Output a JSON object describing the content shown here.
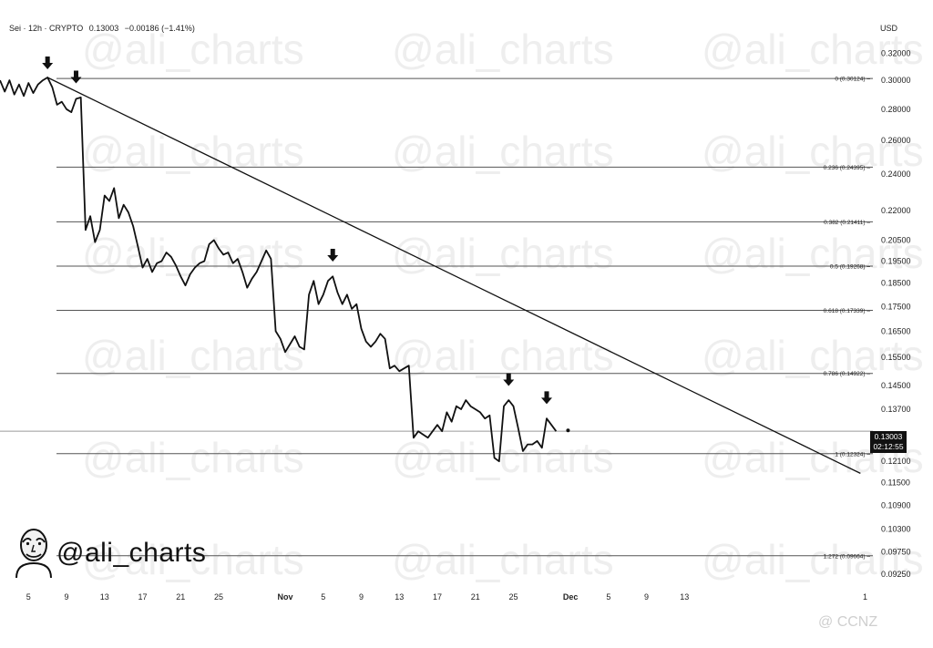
{
  "header": {
    "symbol": "Sei · 12h · CRYPTO",
    "price": "0.13003",
    "change": "−0.00186 (−1.41%)",
    "currency": "USD"
  },
  "price_label": {
    "price": "0.13003",
    "countdown": "02:12:55"
  },
  "watermark": {
    "handle": "@ali_charts",
    "repeat_text": "@ali_charts"
  },
  "source": {
    "mark": "@ CCNZ"
  },
  "colors": {
    "line": "#111111",
    "fib": "#555555",
    "axis_text": "#222222",
    "watermark": "#eeeeee"
  },
  "chart_data": {
    "type": "line",
    "title": "",
    "xlabel": "",
    "ylabel": "",
    "y_scale": "log",
    "ylim": [
      0.0905,
      0.333
    ],
    "y_ticks": [
      "0.32000",
      "0.30000",
      "0.28000",
      "0.26000",
      "0.24000",
      "0.22000",
      "0.20500",
      "0.19500",
      "0.18500",
      "0.17500",
      "0.16500",
      "0.15500",
      "0.14500",
      "0.13700",
      "0.12100",
      "0.11500",
      "0.10900",
      "0.10300",
      "0.09750",
      "0.09250"
    ],
    "x_ticks": [
      {
        "date": "2024-10-05",
        "label": "5"
      },
      {
        "date": "2024-10-09",
        "label": "9"
      },
      {
        "date": "2024-10-13",
        "label": "13"
      },
      {
        "date": "2024-10-17",
        "label": "17"
      },
      {
        "date": "2024-10-21",
        "label": "21"
      },
      {
        "date": "2024-10-25",
        "label": "25"
      },
      {
        "date": "2024-11-01",
        "label": "Nov"
      },
      {
        "date": "2024-11-05",
        "label": "5"
      },
      {
        "date": "2024-11-09",
        "label": "9"
      },
      {
        "date": "2024-11-13",
        "label": "13"
      },
      {
        "date": "2024-11-17",
        "label": "17"
      },
      {
        "date": "2024-11-21",
        "label": "21"
      },
      {
        "date": "2024-11-25",
        "label": "25"
      },
      {
        "date": "2024-12-01",
        "label": "Dec"
      },
      {
        "date": "2024-12-05",
        "label": "5"
      },
      {
        "date": "2024-12-09",
        "label": "9"
      },
      {
        "date": "2024-12-13",
        "label": "13"
      },
      {
        "date": "2025-01-01",
        "label": "1"
      }
    ],
    "series": [
      {
        "values": [
          [
            "2024-10-02 00:00",
            0.3
          ],
          [
            "2024-10-02 12:00",
            0.292
          ],
          [
            "2024-10-03 00:00",
            0.3
          ],
          [
            "2024-10-03 12:00",
            0.29
          ],
          [
            "2024-10-04 00:00",
            0.297
          ],
          [
            "2024-10-04 12:00",
            0.289
          ],
          [
            "2024-10-05 00:00",
            0.298
          ],
          [
            "2024-10-05 12:00",
            0.291
          ],
          [
            "2024-10-06 00:00",
            0.297
          ],
          [
            "2024-10-06 12:00",
            0.3
          ],
          [
            "2024-10-07 00:00",
            0.302
          ],
          [
            "2024-10-07 12:00",
            0.295
          ],
          [
            "2024-10-08 00:00",
            0.283
          ],
          [
            "2024-10-08 12:00",
            0.285
          ],
          [
            "2024-10-09 00:00",
            0.28
          ],
          [
            "2024-10-09 12:00",
            0.278
          ],
          [
            "2024-10-10 00:00",
            0.287
          ],
          [
            "2024-10-10 12:00",
            0.288
          ],
          [
            "2024-10-11 00:00",
            0.21
          ],
          [
            "2024-10-11 12:00",
            0.217
          ],
          [
            "2024-10-12 00:00",
            0.204
          ],
          [
            "2024-10-12 12:00",
            0.21
          ],
          [
            "2024-10-13 00:00",
            0.228
          ],
          [
            "2024-10-13 12:00",
            0.225
          ],
          [
            "2024-10-14 00:00",
            0.232
          ],
          [
            "2024-10-14 12:00",
            0.216
          ],
          [
            "2024-10-15 00:00",
            0.223
          ],
          [
            "2024-10-15 12:00",
            0.219
          ],
          [
            "2024-10-16 00:00",
            0.212
          ],
          [
            "2024-10-16 12:00",
            0.202
          ],
          [
            "2024-10-17 00:00",
            0.192
          ],
          [
            "2024-10-17 12:00",
            0.196
          ],
          [
            "2024-10-18 00:00",
            0.19
          ],
          [
            "2024-10-18 12:00",
            0.194
          ],
          [
            "2024-10-19 00:00",
            0.195
          ],
          [
            "2024-10-19 12:00",
            0.199
          ],
          [
            "2024-10-20 00:00",
            0.197
          ],
          [
            "2024-10-20 12:00",
            0.193
          ],
          [
            "2024-10-21 00:00",
            0.188
          ],
          [
            "2024-10-21 12:00",
            0.184
          ],
          [
            "2024-10-22 00:00",
            0.189
          ],
          [
            "2024-10-22 12:00",
            0.192
          ],
          [
            "2024-10-23 00:00",
            0.194
          ],
          [
            "2024-10-23 12:00",
            0.195
          ],
          [
            "2024-10-24 00:00",
            0.203
          ],
          [
            "2024-10-24 12:00",
            0.205
          ],
          [
            "2024-10-25 00:00",
            0.201
          ],
          [
            "2024-10-25 12:00",
            0.198
          ],
          [
            "2024-10-26 00:00",
            0.199
          ],
          [
            "2024-10-26 12:00",
            0.194
          ],
          [
            "2024-10-27 00:00",
            0.196
          ],
          [
            "2024-10-27 12:00",
            0.19
          ],
          [
            "2024-10-28 00:00",
            0.183
          ],
          [
            "2024-10-28 12:00",
            0.187
          ],
          [
            "2024-10-29 00:00",
            0.19
          ],
          [
            "2024-10-29 12:00",
            0.195
          ],
          [
            "2024-10-30 00:00",
            0.2
          ],
          [
            "2024-10-30 12:00",
            0.196
          ],
          [
            "2024-10-31 00:00",
            0.165
          ],
          [
            "2024-10-31 12:00",
            0.162
          ],
          [
            "2024-11-01 00:00",
            0.157
          ],
          [
            "2024-11-01 12:00",
            0.16
          ],
          [
            "2024-11-02 00:00",
            0.163
          ],
          [
            "2024-11-02 12:00",
            0.159
          ],
          [
            "2024-11-03 00:00",
            0.158
          ],
          [
            "2024-11-03 12:00",
            0.18
          ],
          [
            "2024-11-04 00:00",
            0.186
          ],
          [
            "2024-11-04 12:00",
            0.176
          ],
          [
            "2024-11-05 00:00",
            0.18
          ],
          [
            "2024-11-05 12:00",
            0.186
          ],
          [
            "2024-11-06 00:00",
            0.188
          ],
          [
            "2024-11-06 12:00",
            0.181
          ],
          [
            "2024-11-07 00:00",
            0.176
          ],
          [
            "2024-11-07 12:00",
            0.18
          ],
          [
            "2024-11-08 00:00",
            0.174
          ],
          [
            "2024-11-08 12:00",
            0.176
          ],
          [
            "2024-11-09 00:00",
            0.166
          ],
          [
            "2024-11-09 12:00",
            0.161
          ],
          [
            "2024-11-10 00:00",
            0.159
          ],
          [
            "2024-11-10 12:00",
            0.161
          ],
          [
            "2024-11-11 00:00",
            0.164
          ],
          [
            "2024-11-11 12:00",
            0.162
          ],
          [
            "2024-11-12 00:00",
            0.151
          ],
          [
            "2024-11-12 12:00",
            0.152
          ],
          [
            "2024-11-13 00:00",
            0.15
          ],
          [
            "2024-11-13 12:00",
            0.151
          ],
          [
            "2024-11-14 00:00",
            0.152
          ],
          [
            "2024-11-14 12:00",
            0.128
          ],
          [
            "2024-11-15 00:00",
            0.13
          ],
          [
            "2024-11-15 12:00",
            0.129
          ],
          [
            "2024-11-16 00:00",
            0.128
          ],
          [
            "2024-11-16 12:00",
            0.13
          ],
          [
            "2024-11-17 00:00",
            0.132
          ],
          [
            "2024-11-17 12:00",
            0.13
          ],
          [
            "2024-11-18 00:00",
            0.136
          ],
          [
            "2024-11-18 12:00",
            0.133
          ],
          [
            "2024-11-19 00:00",
            0.138
          ],
          [
            "2024-11-19 12:00",
            0.137
          ],
          [
            "2024-11-20 00:00",
            0.14
          ],
          [
            "2024-11-20 12:00",
            0.138
          ],
          [
            "2024-11-21 00:00",
            0.137
          ],
          [
            "2024-11-21 12:00",
            0.136
          ],
          [
            "2024-11-22 00:00",
            0.134
          ],
          [
            "2024-11-22 12:00",
            0.135
          ],
          [
            "2024-11-23 00:00",
            0.122
          ],
          [
            "2024-11-23 12:00",
            0.121
          ],
          [
            "2024-11-24 00:00",
            0.138
          ],
          [
            "2024-11-24 12:00",
            0.14
          ],
          [
            "2024-11-25 00:00",
            0.138
          ],
          [
            "2024-11-25 12:00",
            0.131
          ],
          [
            "2024-11-26 00:00",
            0.124
          ],
          [
            "2024-11-26 12:00",
            0.126
          ],
          [
            "2024-11-27 00:00",
            0.126
          ],
          [
            "2024-11-27 12:00",
            0.127
          ],
          [
            "2024-11-28 00:00",
            0.125
          ],
          [
            "2024-11-28 12:00",
            0.134
          ],
          [
            "2024-11-29 00:00",
            0.132
          ],
          [
            "2024-11-29 12:00",
            0.13
          ]
        ]
      }
    ],
    "trendline": {
      "from": [
        "2024-10-07 00:00",
        0.302
      ],
      "to": [
        "2024-12-31 12:00",
        0.1176
      ]
    },
    "fib_levels": [
      {
        "label": "0 (0.30124)",
        "value": 0.30124
      },
      {
        "label": "0.236 (0.24395)",
        "value": 0.24395
      },
      {
        "label": "0.382 (0.21411)",
        "value": 0.21411
      },
      {
        "label": "0.5 (0.19268)",
        "value": 0.19268
      },
      {
        "label": "0.618 (0.17339)",
        "value": 0.17339
      },
      {
        "label": "0.786 (0.14922)",
        "value": 0.14922
      },
      {
        "label": "1 (0.12324)",
        "value": 0.12324
      },
      {
        "label": "1.272 (0.09664)",
        "value": 0.09664
      }
    ],
    "current_price_line": 0.13003,
    "rejection_markers": [
      {
        "date": "2024-10-07 00:00",
        "value": 0.302
      },
      {
        "date": "2024-10-10 00:00",
        "value": 0.292
      },
      {
        "date": "2024-11-06 00:00",
        "value": 0.191
      },
      {
        "date": "2024-11-24 12:00",
        "value": 0.142
      },
      {
        "date": "2024-11-28 12:00",
        "value": 0.136
      }
    ]
  }
}
